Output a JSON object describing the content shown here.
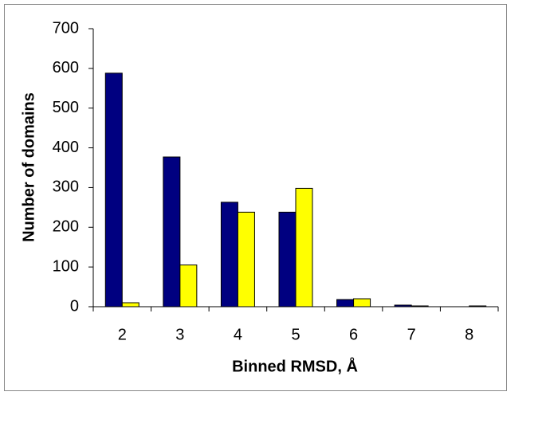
{
  "chart_data": {
    "type": "bar",
    "x_label": "Binned RMSD, Å",
    "y_label": "Number of domains",
    "categories": [
      "2",
      "3",
      "4",
      "5",
      "6",
      "7",
      "8"
    ],
    "series": [
      {
        "color": "#000080",
        "values": [
          588,
          377,
          263,
          238,
          18,
          4,
          0
        ]
      },
      {
        "color": "#ffff00",
        "values": [
          10,
          105,
          238,
          298,
          20,
          2,
          2
        ]
      }
    ],
    "ylim": [
      0,
      700
    ],
    "yticks": [
      0,
      100,
      200,
      300,
      400,
      500,
      600,
      700
    ]
  }
}
